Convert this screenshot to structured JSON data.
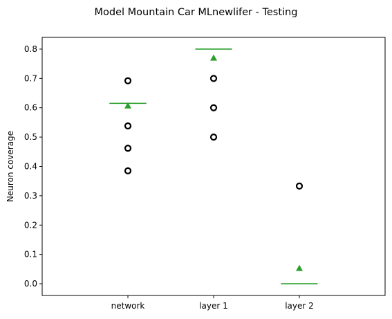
{
  "chart_data": {
    "type": "box",
    "title": "Model Mountain Car MLnewlifer - Testing",
    "xlabel": "",
    "ylabel": "Neuron coverage",
    "ylim": [
      -0.04,
      0.84
    ],
    "yticks": [
      0.0,
      0.1,
      0.2,
      0.3,
      0.4,
      0.5,
      0.6,
      0.7,
      0.8
    ],
    "yticklabels": [
      "0.0",
      "0.1",
      "0.2",
      "0.3",
      "0.4",
      "0.5",
      "0.6",
      "0.7",
      "0.8"
    ],
    "grid": false,
    "categories": [
      "network",
      "layer 1",
      "layer 2"
    ],
    "boxes": [
      {
        "q1": 0.615,
        "median": 0.615,
        "q3": 0.615,
        "whisker_low": 0.615,
        "whisker_high": 0.615,
        "mean": 0.607,
        "outliers": [
          0.385,
          0.462,
          0.538,
          0.692
        ]
      },
      {
        "q1": 0.8,
        "median": 0.8,
        "q3": 0.8,
        "whisker_low": 0.8,
        "whisker_high": 0.8,
        "mean": 0.77,
        "outliers": [
          0.5,
          0.6,
          0.7
        ]
      },
      {
        "q1": 0.0,
        "median": 0.0,
        "q3": 0.0,
        "whisker_low": 0.0,
        "whisker_high": 0.0,
        "mean": 0.053,
        "outliers": [
          0.333
        ]
      }
    ],
    "colors": {
      "median": "#2ca02c",
      "mean_marker": "#2ca02c",
      "box": "#000000",
      "outlier_edge": "#000000"
    }
  }
}
